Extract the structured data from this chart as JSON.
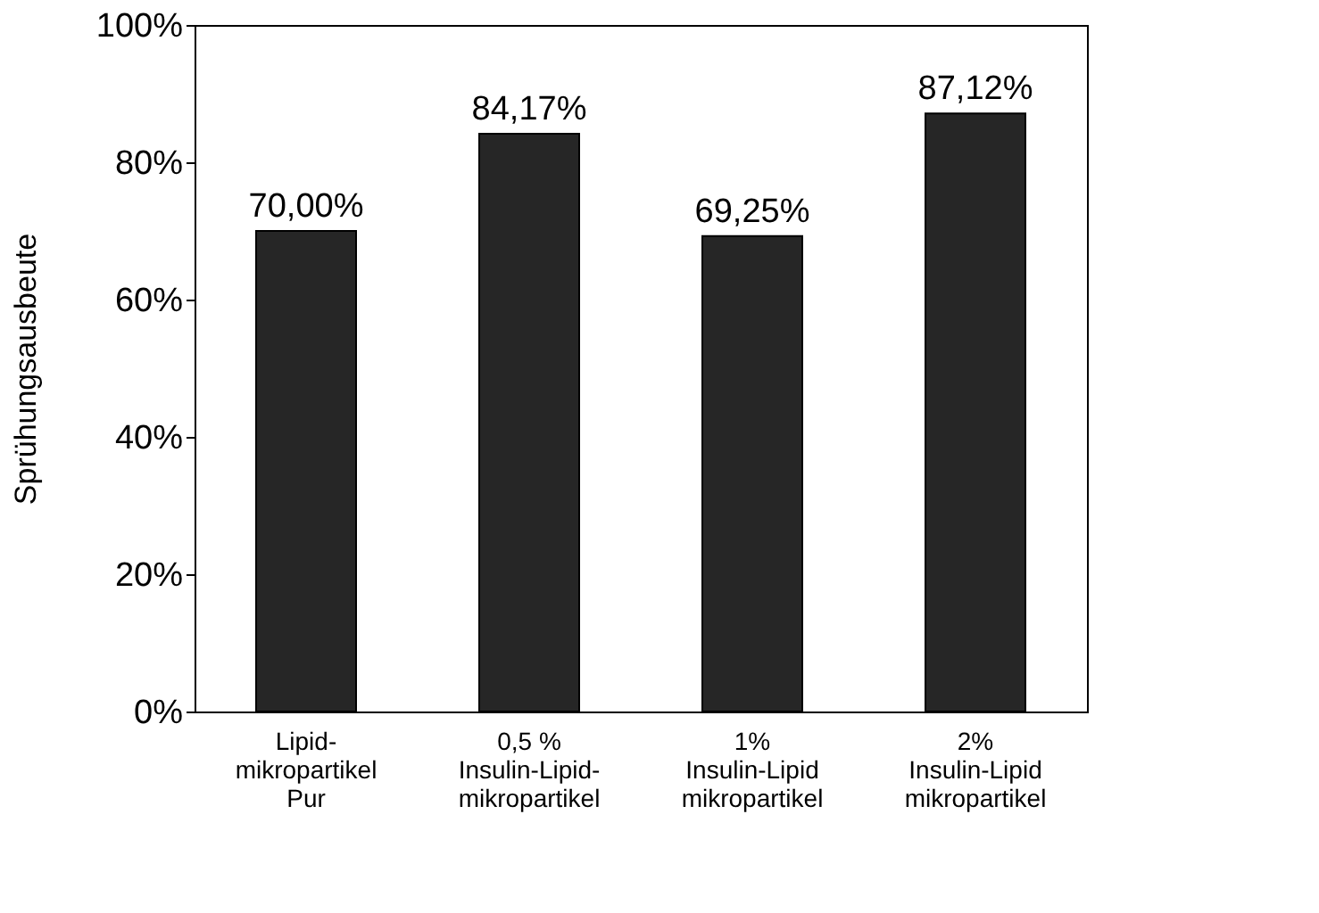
{
  "chart_data": {
    "type": "bar",
    "ylabel": "Sprühungsausbeute",
    "categories": [
      "Lipid-\nmikropartikel\nPur",
      "0,5 %\nInsulin-Lipid-\nmikropartikel",
      "1%\nInsulin-Lipid\nmikropartikel",
      "2%\nInsulin-Lipid\nmikropartikel"
    ],
    "values": [
      70.0,
      84.17,
      69.25,
      87.12
    ],
    "value_labels": [
      "70,00%",
      "84,17%",
      "69,25%",
      "87,12%"
    ],
    "color": "#262626",
    "ylim": [
      0,
      100
    ],
    "yticks": [
      {
        "value": 0,
        "label": "0%"
      },
      {
        "value": 20,
        "label": "20%"
      },
      {
        "value": 40,
        "label": "40%"
      },
      {
        "value": 60,
        "label": "60%"
      },
      {
        "value": 80,
        "label": "80%"
      },
      {
        "value": 100,
        "label": "100%"
      }
    ],
    "grid": false
  }
}
